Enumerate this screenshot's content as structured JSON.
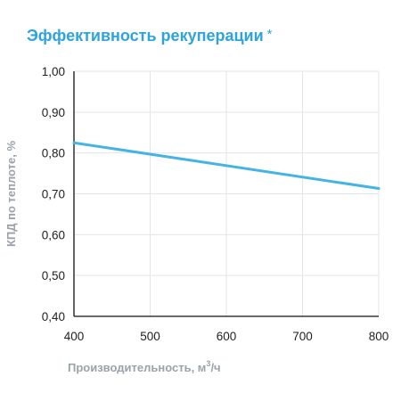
{
  "title": "Эффективность рекуперации",
  "title_mark": "*",
  "chart_data": {
    "type": "line",
    "title": "Эффективность рекуперации",
    "xlabel": "Производительность, м3/ч",
    "xlabel_prefix": "Производительность, м",
    "xlabel_sup": "3",
    "xlabel_suffix": "/ч",
    "ylabel": "КПД по теплоте, %",
    "xlim": [
      400,
      800
    ],
    "ylim": [
      0.4,
      1.0
    ],
    "x_ticks": [
      400,
      500,
      600,
      700,
      800
    ],
    "y_ticks": [
      0.4,
      0.5,
      0.6,
      0.7,
      0.8,
      0.9,
      1.0
    ],
    "x_tick_labels": [
      "400",
      "500",
      "600",
      "700",
      "800"
    ],
    "y_tick_labels": [
      "0,40",
      "0,50",
      "0,60",
      "0,70",
      "0,80",
      "0,90",
      "1,00"
    ],
    "grid": true,
    "series": [
      {
        "x": [
          400,
          800
        ],
        "y": [
          0.825,
          0.713
        ]
      }
    ]
  },
  "colors": {
    "title": "#2ea3dc",
    "series": "#45b3e4",
    "grid": "#e3e6e8",
    "axis": "#111111",
    "axis_label": "#9aa3aa"
  }
}
